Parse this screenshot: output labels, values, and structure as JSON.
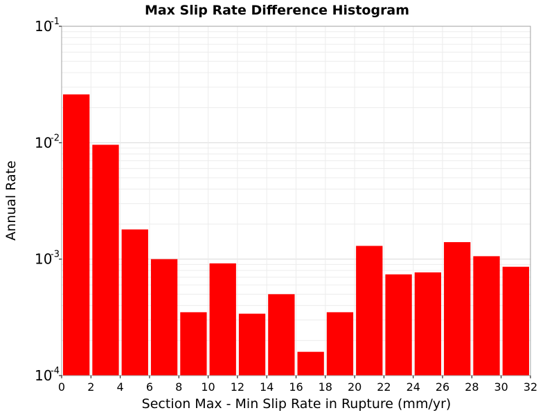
{
  "chart_data": {
    "type": "bar",
    "title": "Max Slip Rate Difference Histogram",
    "xlabel": "Section Max - Min Slip Rate in Rupture (mm/yr)",
    "ylabel": "Annual Rate",
    "x_scale": "linear",
    "y_scale": "log",
    "xlim": [
      0,
      32
    ],
    "ylim": [
      0.0001,
      0.1
    ],
    "bin_width": 2,
    "x_ticks": [
      "0",
      "2",
      "4",
      "6",
      "8",
      "10",
      "12",
      "14",
      "16",
      "18",
      "20",
      "22",
      "24",
      "26",
      "28",
      "30",
      "32"
    ],
    "y_ticks": [
      {
        "base": "10",
        "exp": "-4",
        "value": 0.0001
      },
      {
        "base": "10",
        "exp": "-3",
        "value": 0.001
      },
      {
        "base": "10",
        "exp": "-2",
        "value": 0.01
      },
      {
        "base": "10",
        "exp": "-1",
        "value": 0.1
      }
    ],
    "grid": true,
    "legend": "none",
    "bar_color": "#ff0000",
    "bars": [
      {
        "x_start": 0,
        "x_end": 2,
        "value": 0.026
      },
      {
        "x_start": 2,
        "x_end": 4,
        "value": 0.0096
      },
      {
        "x_start": 4,
        "x_end": 6,
        "value": 0.0018
      },
      {
        "x_start": 6,
        "x_end": 8,
        "value": 0.001
      },
      {
        "x_start": 8,
        "x_end": 10,
        "value": 0.00035
      },
      {
        "x_start": 10,
        "x_end": 12,
        "value": 0.00092
      },
      {
        "x_start": 12,
        "x_end": 14,
        "value": 0.00034
      },
      {
        "x_start": 14,
        "x_end": 16,
        "value": 0.0005
      },
      {
        "x_start": 16,
        "x_end": 18,
        "value": 0.00016
      },
      {
        "x_start": 18,
        "x_end": 20,
        "value": 0.00035
      },
      {
        "x_start": 20,
        "x_end": 22,
        "value": 0.0013
      },
      {
        "x_start": 22,
        "x_end": 24,
        "value": 0.00074
      },
      {
        "x_start": 24,
        "x_end": 26,
        "value": 0.00077
      },
      {
        "x_start": 26,
        "x_end": 28,
        "value": 0.0014
      },
      {
        "x_start": 28,
        "x_end": 30,
        "value": 0.00106
      },
      {
        "x_start": 30,
        "x_end": 32,
        "value": 0.00086
      }
    ]
  }
}
